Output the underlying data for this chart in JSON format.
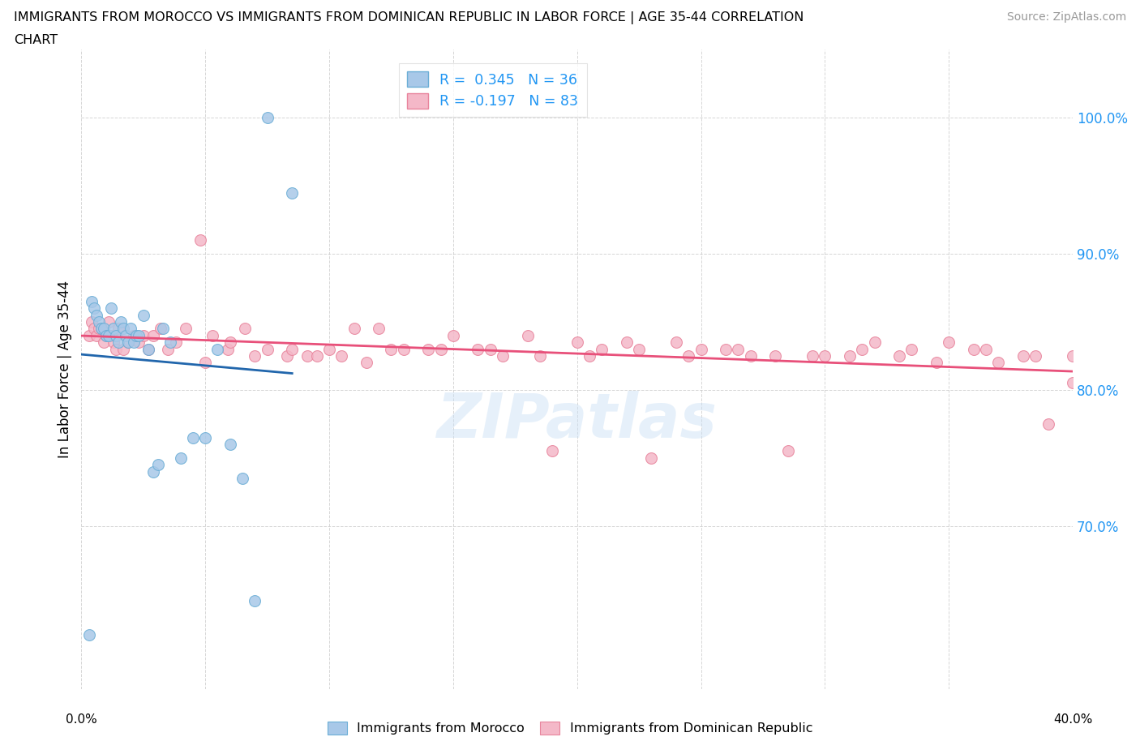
{
  "title_line1": "IMMIGRANTS FROM MOROCCO VS IMMIGRANTS FROM DOMINICAN REPUBLIC IN LABOR FORCE | AGE 35-44 CORRELATION",
  "title_line2": "CHART",
  "source_text": "Source: ZipAtlas.com",
  "yticks": [
    100.0,
    90.0,
    80.0,
    70.0
  ],
  "xticks": [
    0.0,
    5.0,
    10.0,
    15.0,
    20.0,
    25.0,
    30.0,
    35.0,
    40.0
  ],
  "xlim": [
    0.0,
    40.0
  ],
  "ylim": [
    58.0,
    105.0
  ],
  "morocco_color": "#a8c8e8",
  "morocco_edge": "#6baed6",
  "dr_color": "#f4b8c8",
  "dr_edge": "#e8849c",
  "trendline_morocco_color": "#2166ac",
  "trendline_dr_color": "#e8507a",
  "morocco_R": 0.345,
  "morocco_N": 36,
  "dr_R": -0.197,
  "dr_N": 83,
  "watermark": "ZIPatlas",
  "legend_label_morocco": "Immigrants from Morocco",
  "legend_label_dr": "Immigrants from Dominican Republic",
  "morocco_x": [
    0.3,
    0.4,
    0.5,
    0.6,
    0.7,
    0.8,
    0.9,
    1.0,
    1.1,
    1.2,
    1.3,
    1.4,
    1.5,
    1.6,
    1.7,
    1.8,
    1.9,
    2.0,
    2.1,
    2.2,
    2.3,
    2.5,
    2.7,
    2.9,
    3.1,
    3.3,
    3.6,
    4.0,
    4.5,
    5.0,
    5.5,
    6.0,
    6.5,
    7.0,
    7.5,
    8.5
  ],
  "morocco_y": [
    62.0,
    86.5,
    86.0,
    85.5,
    85.0,
    84.5,
    84.5,
    84.0,
    84.0,
    86.0,
    84.5,
    84.0,
    83.5,
    85.0,
    84.5,
    84.0,
    83.5,
    84.5,
    83.5,
    84.0,
    84.0,
    85.5,
    83.0,
    74.0,
    74.5,
    84.5,
    83.5,
    75.0,
    76.5,
    76.5,
    83.0,
    76.0,
    73.5,
    64.5,
    100.0,
    94.5
  ],
  "dr_x": [
    0.3,
    0.4,
    0.5,
    0.6,
    0.7,
    0.8,
    0.9,
    1.0,
    1.1,
    1.2,
    1.3,
    1.4,
    1.5,
    1.7,
    1.9,
    2.1,
    2.3,
    2.5,
    2.7,
    2.9,
    3.2,
    3.5,
    3.8,
    4.2,
    4.8,
    5.3,
    5.9,
    6.6,
    7.5,
    8.3,
    9.1,
    10.0,
    11.0,
    12.0,
    13.0,
    14.0,
    15.0,
    16.0,
    17.0,
    18.0,
    19.0,
    20.0,
    21.0,
    22.0,
    23.0,
    24.0,
    25.0,
    26.0,
    27.0,
    28.5,
    30.0,
    31.0,
    32.0,
    33.5,
    35.0,
    36.0,
    37.0,
    38.0,
    39.0,
    40.0,
    5.0,
    6.0,
    7.0,
    8.5,
    9.5,
    10.5,
    11.5,
    12.5,
    14.5,
    16.5,
    18.5,
    20.5,
    22.5,
    24.5,
    26.5,
    28.0,
    29.5,
    31.5,
    33.0,
    34.5,
    36.5,
    38.5,
    40.0
  ],
  "dr_y": [
    84.0,
    85.0,
    84.5,
    84.0,
    84.5,
    84.5,
    83.5,
    84.0,
    85.0,
    84.0,
    83.5,
    83.0,
    84.5,
    83.0,
    83.5,
    84.0,
    83.5,
    84.0,
    83.0,
    84.0,
    84.5,
    83.0,
    83.5,
    84.5,
    91.0,
    84.0,
    83.0,
    84.5,
    83.0,
    82.5,
    82.5,
    83.0,
    84.5,
    84.5,
    83.0,
    83.0,
    84.0,
    83.0,
    82.5,
    84.0,
    75.5,
    83.5,
    83.0,
    83.5,
    75.0,
    83.5,
    83.0,
    83.0,
    82.5,
    75.5,
    82.5,
    82.5,
    83.5,
    83.0,
    83.5,
    83.0,
    82.0,
    82.5,
    77.5,
    82.5,
    82.0,
    83.5,
    82.5,
    83.0,
    82.5,
    82.5,
    82.0,
    83.0,
    83.0,
    83.0,
    82.5,
    82.5,
    83.0,
    82.5,
    83.0,
    82.5,
    82.5,
    83.0,
    82.5,
    82.0,
    83.0,
    82.5,
    80.5
  ]
}
